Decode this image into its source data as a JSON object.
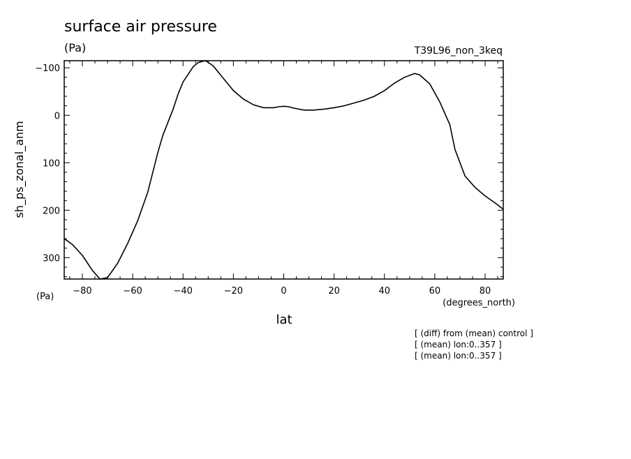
{
  "chart_data": {
    "type": "line",
    "title": "surface air pressure",
    "units_label": "(Pa)",
    "run_label": "T39L96_non_3keq",
    "ylabel": "sh_ps_zonal_anm",
    "y_units_label": "(Pa)",
    "xlabel": "lat",
    "x_units_label": "(degrees_north)",
    "xlim": [
      -87.2,
      87.2
    ],
    "ylim": [
      -115,
      345
    ],
    "y_inverted": true,
    "x_ticks": [
      -80,
      -60,
      -40,
      -20,
      0,
      20,
      40,
      60,
      80
    ],
    "x_tick_labels": [
      "−80",
      "−60",
      "−40",
      "−20",
      "0",
      "20",
      "40",
      "60",
      "80"
    ],
    "y_ticks": [
      -100,
      0,
      100,
      200,
      300
    ],
    "y_tick_labels": [
      "−100",
      "0",
      "100",
      "200",
      "300"
    ],
    "grid": false,
    "series": [
      {
        "x": [
          -87.2,
          -84,
          -80,
          -76,
          -73,
          -70,
          -66,
          -62,
          -58,
          -54,
          -50,
          -48,
          -44,
          -42,
          -40,
          -36,
          -34,
          -32,
          -31,
          -28,
          -24,
          -20,
          -16,
          -12,
          -8,
          -4,
          -2,
          0,
          2,
          4,
          8,
          12,
          16,
          20,
          24,
          28,
          32,
          36,
          40,
          44,
          48,
          52,
          54,
          58,
          62,
          66,
          68,
          72,
          76,
          80,
          84,
          87.2
        ],
        "y": [
          260,
          272,
          295,
          327,
          345,
          342,
          312,
          270,
          222,
          162,
          78,
          42,
          -12,
          -44,
          -70,
          -102,
          -111,
          -114,
          -115,
          -104,
          -78,
          -52,
          -34,
          -22,
          -16,
          -16,
          -18,
          -19,
          -18,
          -15,
          -11,
          -11,
          -13,
          -16,
          -20,
          -26,
          -32,
          -40,
          -52,
          -68,
          -80,
          -88,
          -85,
          -66,
          -28,
          20,
          72,
          128,
          152,
          170,
          185,
          198
        ]
      }
    ],
    "notes": [
      "[ (diff) from (mean) control ]",
      "[ (mean) lon:0..357 ]",
      "[ (mean) lon:0..357 ]"
    ]
  }
}
